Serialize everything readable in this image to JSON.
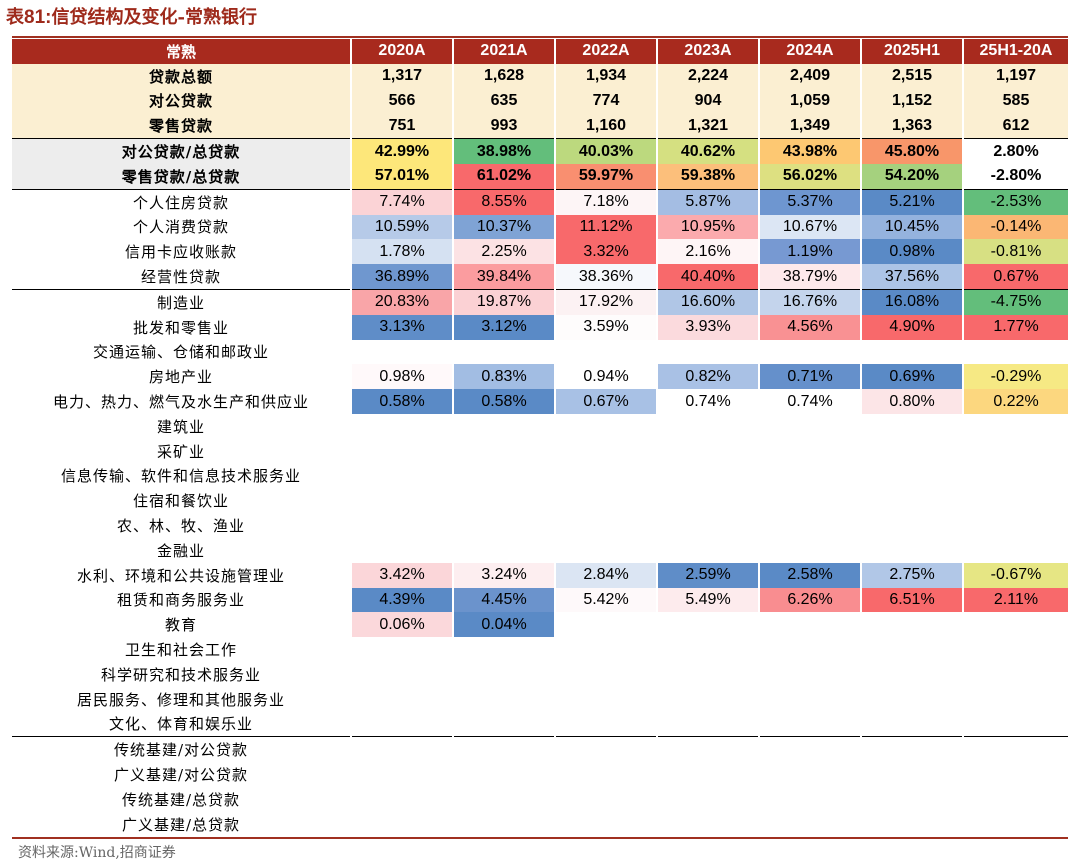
{
  "title": {
    "prefix": "表",
    "number": "81:",
    "text": "信贷结构及变化-常熟银行"
  },
  "header": [
    "常熟",
    "2020A",
    "2021A",
    "2022A",
    "2023A",
    "2024A",
    "2025H1",
    "25H1-20A"
  ],
  "rows": [
    {
      "label": "贷款总额",
      "cells": [
        [
          "1,317",
          ""
        ],
        [
          "1,628",
          ""
        ],
        [
          "1,934",
          ""
        ],
        [
          "2,224",
          ""
        ],
        [
          "2,409",
          ""
        ],
        [
          "2,515",
          ""
        ],
        [
          "1,197",
          ""
        ]
      ]
    },
    {
      "label": "对公贷款",
      "cells": [
        [
          "566",
          ""
        ],
        [
          "635",
          ""
        ],
        [
          "774",
          ""
        ],
        [
          "904",
          ""
        ],
        [
          "1,059",
          ""
        ],
        [
          "1,152",
          ""
        ],
        [
          "585",
          ""
        ]
      ]
    },
    {
      "label": "零售贷款",
      "cells": [
        [
          "751",
          ""
        ],
        [
          "993",
          ""
        ],
        [
          "1,160",
          ""
        ],
        [
          "1,321",
          ""
        ],
        [
          "1,349",
          ""
        ],
        [
          "1,363",
          ""
        ],
        [
          "612",
          ""
        ]
      ]
    },
    {
      "label": "对公贷款/总贷款",
      "cells": [
        [
          "42.99%",
          "#fde77a"
        ],
        [
          "38.98%",
          "#63be7b"
        ],
        [
          "40.03%",
          "#bcd97e"
        ],
        [
          "40.62%",
          "#d5e081"
        ],
        [
          "43.98%",
          "#fdc872"
        ],
        [
          "45.80%",
          "#f8966a"
        ],
        [
          "2.80%",
          "#ffffff"
        ]
      ]
    },
    {
      "label": "零售贷款/总贷款",
      "cells": [
        [
          "57.01%",
          "#fde77a"
        ],
        [
          "61.02%",
          "#f8696b"
        ],
        [
          "59.97%",
          "#f98f70"
        ],
        [
          "59.38%",
          "#fcbf7b"
        ],
        [
          "56.02%",
          "#dde081"
        ],
        [
          "54.20%",
          "#a5d17e"
        ],
        [
          "-2.80%",
          "#ffffff"
        ]
      ]
    },
    {
      "label": "个人住房贷款",
      "cells": [
        [
          "7.74%",
          "#fbd3d6"
        ],
        [
          "8.55%",
          "#f8696b"
        ],
        [
          "7.18%",
          "#fdf5f6"
        ],
        [
          "5.87%",
          "#a4bde3"
        ],
        [
          "5.37%",
          "#6e96d0"
        ],
        [
          "5.21%",
          "#5a8ac6"
        ],
        [
          "-2.53%",
          "#63be7b"
        ]
      ]
    },
    {
      "label": "个人消费贷款",
      "cells": [
        [
          "10.59%",
          "#b6cae8"
        ],
        [
          "10.37%",
          "#7fa3d5"
        ],
        [
          "11.12%",
          "#f8696b"
        ],
        [
          "10.95%",
          "#fbaaad"
        ],
        [
          "10.67%",
          "#dce6f4"
        ],
        [
          "10.45%",
          "#95b3de"
        ],
        [
          "-0.14%",
          "#fbb774"
        ]
      ]
    },
    {
      "label": "信用卡应收账款",
      "cells": [
        [
          "1.78%",
          "#d5e1f2"
        ],
        [
          "2.25%",
          "#fce2e4"
        ],
        [
          "3.32%",
          "#f8696b"
        ],
        [
          "2.16%",
          "#fef5f6"
        ],
        [
          "1.19%",
          "#7799d2"
        ],
        [
          "0.98%",
          "#5a8ac6"
        ],
        [
          "-0.81%",
          "#d7e083"
        ]
      ]
    },
    {
      "label": "经营性贷款",
      "cells": [
        [
          "36.89%",
          "#6f97cf"
        ],
        [
          "39.84%",
          "#fb9c9f"
        ],
        [
          "38.36%",
          "#f6f8fc"
        ],
        [
          "40.40%",
          "#f8696b"
        ],
        [
          "38.79%",
          "#fde9eb"
        ],
        [
          "37.56%",
          "#acc4e6"
        ],
        [
          "0.67%",
          "#f8696b"
        ]
      ]
    },
    {
      "label": "制造业",
      "cells": [
        [
          "20.83%",
          "#f9a5a8"
        ],
        [
          "19.87%",
          "#fbd1d4"
        ],
        [
          "17.92%",
          "#fcf2f3"
        ],
        [
          "16.60%",
          "#b0c6e6"
        ],
        [
          "16.76%",
          "#c4d4ec"
        ],
        [
          "16.08%",
          "#5a8ac6"
        ],
        [
          "-4.75%",
          "#63be7b"
        ]
      ]
    },
    {
      "label": "批发和零售业",
      "cells": [
        [
          "3.13%",
          "#5f8dc8"
        ],
        [
          "3.12%",
          "#5a8ac6"
        ],
        [
          "3.59%",
          "#fefcfc"
        ],
        [
          "3.93%",
          "#fbdadd"
        ],
        [
          "4.56%",
          "#f99193"
        ],
        [
          "4.90%",
          "#f8696b"
        ],
        [
          "1.77%",
          "#f8696b"
        ]
      ]
    },
    {
      "label": "交通运输、仓储和邮政业",
      "cells": [
        [
          "",
          ""
        ],
        [
          "",
          ""
        ],
        [
          "",
          ""
        ],
        [
          "",
          ""
        ],
        [
          "",
          ""
        ],
        [
          "",
          ""
        ],
        [
          "",
          ""
        ]
      ]
    },
    {
      "label": "房地产业",
      "cells": [
        [
          "0.98%",
          "#fff9fa"
        ],
        [
          "0.83%",
          "#a2bde3"
        ],
        [
          "0.94%",
          "#ffffff"
        ],
        [
          "0.82%",
          "#a9c1e5"
        ],
        [
          "0.71%",
          "#6590cb"
        ],
        [
          "0.69%",
          "#5a8ac6"
        ],
        [
          "-0.29%",
          "#f6e984"
        ]
      ]
    },
    {
      "label": "电力、热力、燃气及水生产和供应业",
      "cells": [
        [
          "0.58%",
          "#5a8ac6"
        ],
        [
          "0.58%",
          "#5a8ac6"
        ],
        [
          "0.67%",
          "#a8c1e5"
        ],
        [
          "0.74%",
          "#ffffff"
        ],
        [
          "0.74%",
          "#ffffff"
        ],
        [
          "0.80%",
          "#fce5e7"
        ],
        [
          "0.22%",
          "#fcd77f"
        ]
      ]
    },
    {
      "label": "建筑业",
      "cells": [
        [
          "",
          ""
        ],
        [
          "",
          ""
        ],
        [
          "",
          ""
        ],
        [
          "",
          ""
        ],
        [
          "",
          ""
        ],
        [
          "",
          ""
        ],
        [
          "",
          ""
        ]
      ]
    },
    {
      "label": "采矿业",
      "cells": [
        [
          "",
          ""
        ],
        [
          "",
          ""
        ],
        [
          "",
          ""
        ],
        [
          "",
          ""
        ],
        [
          "",
          ""
        ],
        [
          "",
          ""
        ],
        [
          "",
          ""
        ]
      ]
    },
    {
      "label": "信息传输、软件和信息技术服务业",
      "cells": [
        [
          "",
          ""
        ],
        [
          "",
          ""
        ],
        [
          "",
          ""
        ],
        [
          "",
          ""
        ],
        [
          "",
          ""
        ],
        [
          "",
          ""
        ],
        [
          "",
          ""
        ]
      ]
    },
    {
      "label": "住宿和餐饮业",
      "cells": [
        [
          "",
          ""
        ],
        [
          "",
          ""
        ],
        [
          "",
          ""
        ],
        [
          "",
          ""
        ],
        [
          "",
          ""
        ],
        [
          "",
          ""
        ],
        [
          "",
          ""
        ]
      ]
    },
    {
      "label": "农、林、牧、渔业",
      "cells": [
        [
          "",
          ""
        ],
        [
          "",
          ""
        ],
        [
          "",
          ""
        ],
        [
          "",
          ""
        ],
        [
          "",
          ""
        ],
        [
          "",
          ""
        ],
        [
          "",
          ""
        ]
      ]
    },
    {
      "label": "金融业",
      "cells": [
        [
          "",
          ""
        ],
        [
          "",
          ""
        ],
        [
          "",
          ""
        ],
        [
          "",
          ""
        ],
        [
          "",
          ""
        ],
        [
          "",
          ""
        ],
        [
          "",
          ""
        ]
      ]
    },
    {
      "label": "水利、环境和公共设施管理业",
      "cells": [
        [
          "3.42%",
          "#fbd6d9"
        ],
        [
          "3.24%",
          "#fdeef0"
        ],
        [
          "2.84%",
          "#dbe5f3"
        ],
        [
          "2.59%",
          "#5f8dc8"
        ],
        [
          "2.58%",
          "#5a8ac6"
        ],
        [
          "2.75%",
          "#b1c7e7"
        ],
        [
          "-0.67%",
          "#e6e684"
        ]
      ]
    },
    {
      "label": "租赁和商务服务业",
      "cells": [
        [
          "4.39%",
          "#5a8ac6"
        ],
        [
          "4.45%",
          "#6b93cc"
        ],
        [
          "5.42%",
          "#fef9fa"
        ],
        [
          "5.49%",
          "#fdebed"
        ],
        [
          "6.26%",
          "#f98d90"
        ],
        [
          "6.51%",
          "#f8696b"
        ],
        [
          "2.11%",
          "#f8696b"
        ]
      ]
    },
    {
      "label": "教育",
      "cells": [
        [
          "0.06%",
          "#fbd8db"
        ],
        [
          "0.04%",
          "#5a8ac6"
        ],
        [
          "",
          ""
        ],
        [
          "",
          ""
        ],
        [
          "",
          ""
        ],
        [
          "",
          ""
        ],
        [
          "",
          ""
        ]
      ]
    },
    {
      "label": "卫生和社会工作",
      "cells": [
        [
          "",
          ""
        ],
        [
          "",
          ""
        ],
        [
          "",
          ""
        ],
        [
          "",
          ""
        ],
        [
          "",
          ""
        ],
        [
          "",
          ""
        ],
        [
          "",
          ""
        ]
      ]
    },
    {
      "label": "科学研究和技术服务业",
      "cells": [
        [
          "",
          ""
        ],
        [
          "",
          ""
        ],
        [
          "",
          ""
        ],
        [
          "",
          ""
        ],
        [
          "",
          ""
        ],
        [
          "",
          ""
        ],
        [
          "",
          ""
        ]
      ]
    },
    {
      "label": "居民服务、修理和其他服务业",
      "cells": [
        [
          "",
          ""
        ],
        [
          "",
          ""
        ],
        [
          "",
          ""
        ],
        [
          "",
          ""
        ],
        [
          "",
          ""
        ],
        [
          "",
          ""
        ],
        [
          "",
          ""
        ]
      ]
    },
    {
      "label": "文化、体育和娱乐业",
      "cells": [
        [
          "",
          ""
        ],
        [
          "",
          ""
        ],
        [
          "",
          ""
        ],
        [
          "",
          ""
        ],
        [
          "",
          ""
        ],
        [
          "",
          ""
        ],
        [
          "",
          ""
        ]
      ]
    },
    {
      "label": "传统基建/对公贷款",
      "cells": [
        [
          "",
          ""
        ],
        [
          "",
          ""
        ],
        [
          "",
          ""
        ],
        [
          "",
          ""
        ],
        [
          "",
          ""
        ],
        [
          "",
          ""
        ],
        [
          "",
          ""
        ]
      ]
    },
    {
      "label": "广义基建/对公贷款",
      "cells": [
        [
          "",
          ""
        ],
        [
          "",
          ""
        ],
        [
          "",
          ""
        ],
        [
          "",
          ""
        ],
        [
          "",
          ""
        ],
        [
          "",
          ""
        ],
        [
          "",
          ""
        ]
      ]
    },
    {
      "label": "传统基建/总贷款",
      "cells": [
        [
          "",
          ""
        ],
        [
          "",
          ""
        ],
        [
          "",
          ""
        ],
        [
          "",
          ""
        ],
        [
          "",
          ""
        ],
        [
          "",
          ""
        ],
        [
          "",
          ""
        ]
      ]
    },
    {
      "label": "广义基建/总贷款",
      "cells": [
        [
          "",
          ""
        ],
        [
          "",
          ""
        ],
        [
          "",
          ""
        ],
        [
          "",
          ""
        ],
        [
          "",
          ""
        ],
        [
          "",
          ""
        ],
        [
          "",
          ""
        ]
      ]
    }
  ],
  "source": "资料来源:Wind,招商证券"
}
